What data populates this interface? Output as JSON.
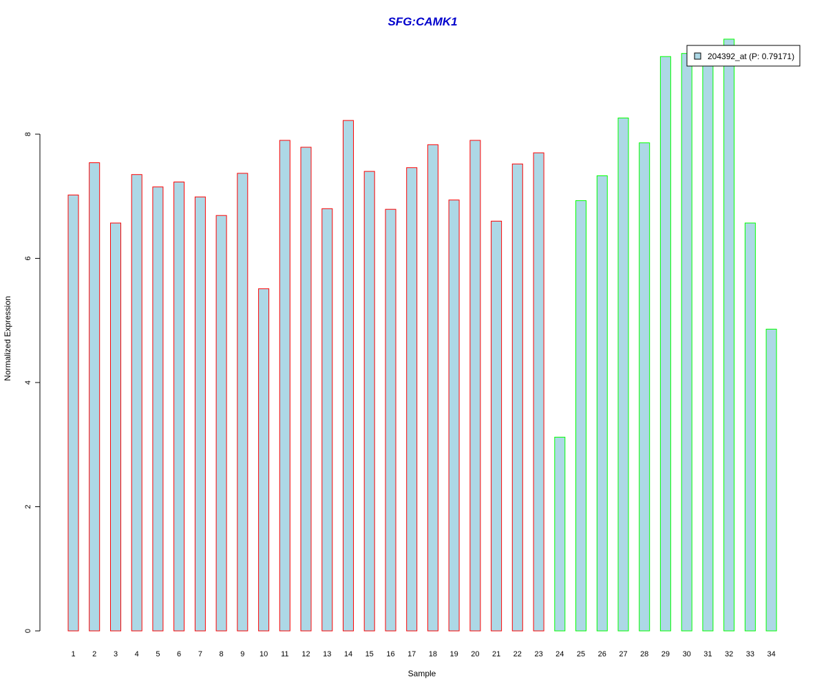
{
  "chart_data": {
    "type": "bar",
    "title": "SFG:CAMK1",
    "xlabel": "Sample",
    "ylabel": "Normalized Expression",
    "categories": [
      "1",
      "2",
      "3",
      "4",
      "5",
      "6",
      "7",
      "8",
      "9",
      "10",
      "11",
      "12",
      "13",
      "14",
      "15",
      "16",
      "17",
      "18",
      "19",
      "20",
      "21",
      "22",
      "23",
      "24",
      "25",
      "26",
      "27",
      "28",
      "29",
      "30",
      "31",
      "32",
      "33",
      "34"
    ],
    "series": [
      {
        "name": "204392_at (P: 0.79171)",
        "values": [
          7.02,
          7.54,
          6.57,
          7.35,
          7.15,
          7.23,
          6.99,
          6.69,
          7.37,
          5.51,
          7.9,
          7.79,
          6.8,
          8.22,
          7.4,
          6.79,
          7.46,
          7.83,
          6.94,
          7.9,
          6.6,
          7.52,
          7.7,
          3.12,
          6.93,
          7.33,
          8.26,
          7.86,
          9.25,
          9.3,
          9.23,
          9.53,
          6.57,
          4.86
        ]
      }
    ],
    "group_split_after": 23,
    "ylim": [
      0,
      9.6
    ],
    "yticks": [
      "0",
      "2",
      "4",
      "6",
      "8"
    ],
    "legend": {
      "position": "top-right",
      "label": "204392_at (P: 0.79171)"
    },
    "grid": false,
    "colors": {
      "title": "#0000CC",
      "bar_fill": "#ADD8E6",
      "group1_border": "#FF0000",
      "group2_border": "#00FF00",
      "axis": "#000000"
    }
  }
}
